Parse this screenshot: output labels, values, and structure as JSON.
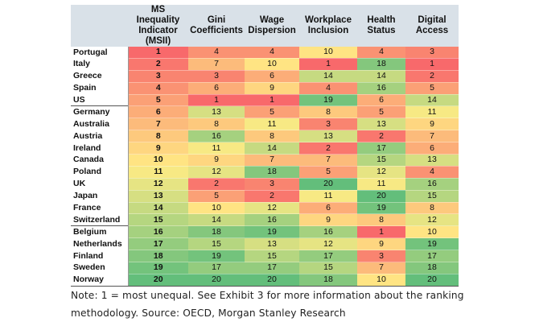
{
  "chart_data": {
    "type": "table",
    "columns": [
      "",
      "MS Inequality Indicator (MSII)",
      "Gini Coefficients",
      "Wage Dispersion",
      "Workplace Inclusion",
      "Health Status",
      "Digital Access"
    ],
    "rows": [
      {
        "country": "Portugal",
        "values": [
          1,
          4,
          4,
          10,
          4,
          3
        ]
      },
      {
        "country": "Italy",
        "values": [
          2,
          7,
          10,
          1,
          18,
          1
        ]
      },
      {
        "country": "Greece",
        "values": [
          3,
          3,
          6,
          14,
          14,
          2
        ]
      },
      {
        "country": "Spain",
        "values": [
          4,
          6,
          9,
          4,
          16,
          5
        ]
      },
      {
        "country": "US",
        "values": [
          5,
          1,
          1,
          19,
          6,
          14
        ]
      },
      {
        "country": "Germany",
        "values": [
          6,
          13,
          5,
          8,
          5,
          11
        ]
      },
      {
        "country": "Australia",
        "values": [
          7,
          8,
          11,
          3,
          13,
          9
        ]
      },
      {
        "country": "Austria",
        "values": [
          8,
          16,
          8,
          13,
          2,
          7
        ]
      },
      {
        "country": "Ireland",
        "values": [
          9,
          11,
          14,
          2,
          17,
          6
        ]
      },
      {
        "country": "Canada",
        "values": [
          10,
          9,
          7,
          7,
          15,
          13
        ]
      },
      {
        "country": "Poland",
        "values": [
          11,
          12,
          18,
          5,
          12,
          4
        ]
      },
      {
        "country": "UK",
        "values": [
          12,
          2,
          3,
          20,
          11,
          16
        ]
      },
      {
        "country": "Japan",
        "values": [
          13,
          5,
          2,
          11,
          20,
          15
        ]
      },
      {
        "country": "France",
        "values": [
          14,
          10,
          12,
          6,
          19,
          8
        ]
      },
      {
        "country": "Switzerland",
        "values": [
          15,
          14,
          16,
          9,
          8,
          12
        ]
      },
      {
        "country": "Belgium",
        "values": [
          16,
          18,
          19,
          16,
          1,
          10
        ]
      },
      {
        "country": "Netherlands",
        "values": [
          17,
          15,
          13,
          12,
          9,
          19
        ]
      },
      {
        "country": "Finland",
        "values": [
          18,
          19,
          15,
          17,
          3,
          17
        ]
      },
      {
        "country": "Sweden",
        "values": [
          19,
          17,
          17,
          15,
          7,
          18
        ]
      },
      {
        "country": "Norway",
        "values": [
          20,
          20,
          20,
          18,
          10,
          20
        ]
      }
    ],
    "group_breaks_after": [
      "US",
      "Switzerland"
    ],
    "color_scale": {
      "min_value": 1,
      "max_value": 20,
      "low_color": "#f8696b",
      "mid_color": "#ffeb84",
      "high_color": "#63be7b"
    }
  },
  "note": "Note: 1 = most unequal. See Exhibit 3 for more information about the ranking methodology. Source: OECD, Morgan Stanley Research"
}
